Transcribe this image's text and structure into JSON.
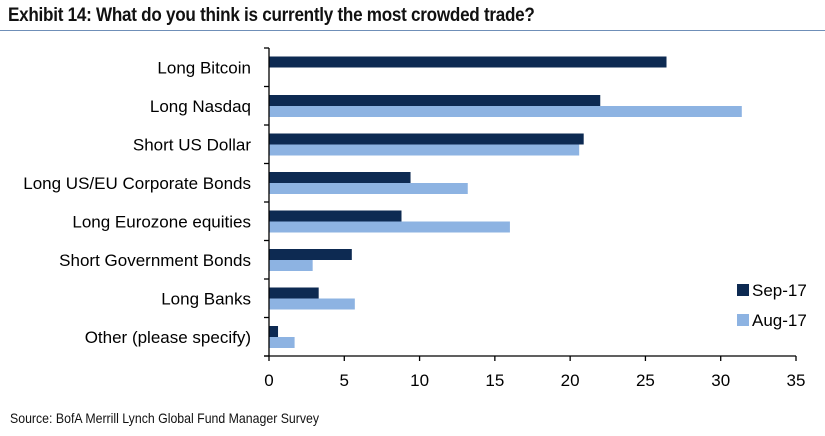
{
  "title": "Exhibit 14: What do you think is currently the most crowded trade?",
  "source": "Source: BofA Merrill Lynch Global Fund Manager Survey",
  "chart_data": {
    "type": "bar",
    "orientation": "horizontal",
    "title": "Exhibit 14: What do you think is currently the most crowded trade?",
    "xlabel": "",
    "ylabel": "",
    "xlim": [
      0,
      35
    ],
    "xticks": [
      0,
      5,
      10,
      15,
      20,
      25,
      30,
      35
    ],
    "xtick_labels": [
      "0",
      "5",
      "10",
      "15",
      "20",
      "25",
      "30",
      "35"
    ],
    "grid": false,
    "legend_position": "bottom-right",
    "categories": [
      "Long Bitcoin",
      "Long Nasdaq",
      "Short US Dollar",
      "Long US/EU Corporate Bonds",
      "Long Eurozone equities",
      "Short Government Bonds",
      "Long Banks",
      "Other (please specify)"
    ],
    "series": [
      {
        "name": "Sep-17",
        "color": "#0d2a52",
        "values": [
          26.4,
          22.0,
          20.9,
          9.4,
          8.8,
          5.5,
          3.3,
          0.6
        ]
      },
      {
        "name": "Aug-17",
        "color": "#8db3e2",
        "values": [
          null,
          31.4,
          20.6,
          13.2,
          16.0,
          2.9,
          5.7,
          1.7
        ]
      }
    ]
  }
}
